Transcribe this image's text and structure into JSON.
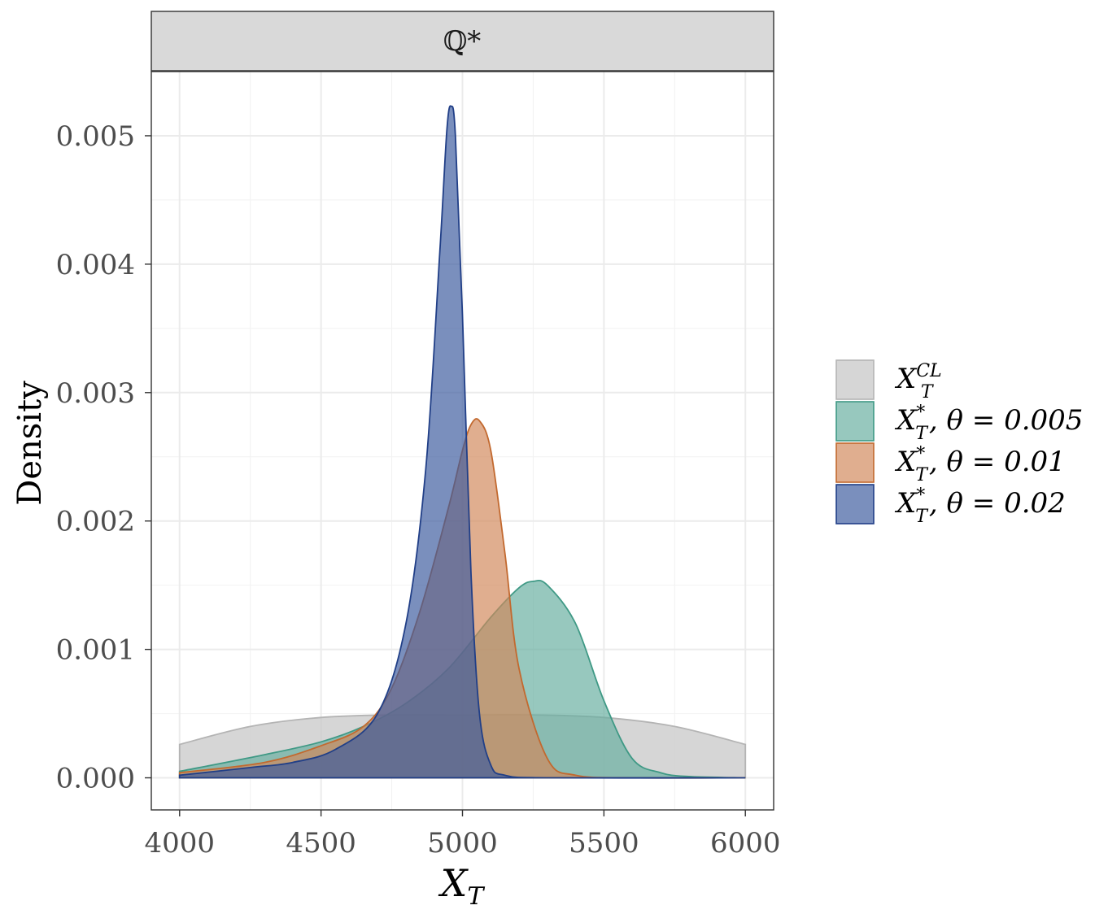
{
  "chart_data": {
    "type": "area",
    "panel_title": "ℚ*",
    "xlabel": "X_T",
    "xlabel_main": "X",
    "xlabel_sub": "T",
    "ylabel": "Density",
    "xlim": [
      3900,
      6100
    ],
    "ylim": [
      -0.00025,
      0.0055
    ],
    "x_ticks": [
      4000,
      4500,
      5000,
      5500,
      6000
    ],
    "x_tick_labels": [
      "4000",
      "4500",
      "5000",
      "5500",
      "6000"
    ],
    "y_ticks": [
      0,
      0.001,
      0.002,
      0.003,
      0.004,
      0.005
    ],
    "y_tick_labels": [
      "0.000",
      "0.001",
      "0.002",
      "0.003",
      "0.004",
      "0.005"
    ],
    "grid": true,
    "legend_position": "right",
    "series": [
      {
        "name": "X_T^{CL}",
        "legend_main": "X",
        "legend_sub": "T",
        "legend_sup": "CL",
        "legend_suffix": "",
        "fill": "#c8c8c8",
        "stroke": "#b4b4b4",
        "x": [
          4000,
          4250,
          4500,
          4750,
          5000,
          5250,
          5500,
          5750,
          6000
        ],
        "y": [
          0.00026,
          0.0004,
          0.00047,
          0.00049,
          0.00049,
          0.00049,
          0.00047,
          0.0004,
          0.00026
        ]
      },
      {
        "name": "X_T^*, θ = 0.005",
        "legend_main": "X",
        "legend_sub": "T",
        "legend_sup": "*",
        "legend_suffix": ", θ = 0.005",
        "fill": "#65ae9f",
        "stroke": "#3f9985",
        "x": [
          4000,
          4300,
          4500,
          4650,
          4800,
          4950,
          5100,
          5200,
          5250,
          5300,
          5400,
          5500,
          5600,
          5700,
          5800,
          6000
        ],
        "y": [
          5e-05,
          0.00018,
          0.00028,
          0.0004,
          0.00058,
          0.00085,
          0.00125,
          0.00148,
          0.00153,
          0.0015,
          0.0012,
          0.0006,
          0.00015,
          4e-05,
          1e-05,
          0.0
        ]
      },
      {
        "name": "X_T^*, θ = 0.01",
        "legend_main": "X",
        "legend_sub": "T",
        "legend_sup": "*",
        "legend_suffix": ", θ = 0.01",
        "fill": "#d1885a",
        "stroke": "#c2692f",
        "x": [
          4000,
          4300,
          4500,
          4650,
          4750,
          4850,
          4950,
          5000,
          5030,
          5060,
          5100,
          5150,
          5200,
          5300,
          5400,
          5600,
          6000
        ],
        "y": [
          4e-05,
          0.00012,
          0.00025,
          0.0004,
          0.0007,
          0.0013,
          0.0021,
          0.00255,
          0.00275,
          0.00278,
          0.00255,
          0.00175,
          0.00085,
          0.00015,
          2e-05,
          0.0,
          0.0
        ]
      },
      {
        "name": "X_T^*, θ = 0.02",
        "legend_main": "X",
        "legend_sub": "T",
        "legend_sup": "*",
        "legend_suffix": ", θ = 0.02",
        "fill": "#3b5a9d",
        "stroke": "#213f87",
        "x": [
          4000,
          4250,
          4400,
          4550,
          4700,
          4800,
          4870,
          4920,
          4945,
          4960,
          4975,
          5000,
          5030,
          5060,
          5100,
          5150,
          5300,
          6000
        ],
        "y": [
          2e-05,
          8e-05,
          0.00012,
          0.00022,
          0.0005,
          0.0012,
          0.0024,
          0.0041,
          0.00505,
          0.00523,
          0.005,
          0.0036,
          0.0016,
          0.0005,
          0.0001,
          2e-05,
          0.0,
          0.0
        ]
      }
    ]
  }
}
